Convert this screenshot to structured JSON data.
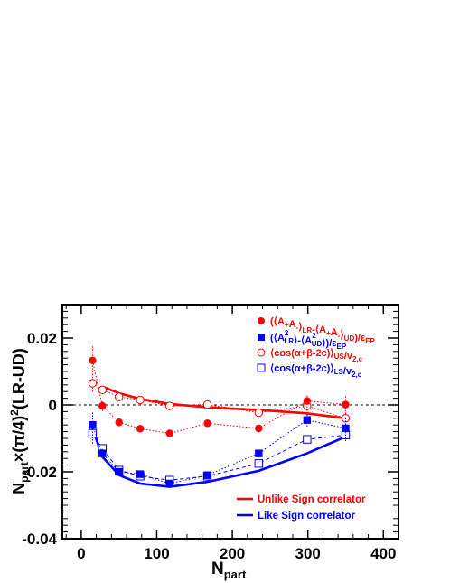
{
  "colors": {
    "red": "#ff0000",
    "blue": "#0000ff",
    "axis": "#000000"
  },
  "chart_data": {
    "type": "scatter",
    "xlabel_main": "N",
    "xlabel_sub": "part",
    "ylabel": "N_part×(π/4)^2(LR-UD)",
    "xlim": [
      -25,
      420
    ],
    "ylim": [
      -0.04,
      0.03
    ],
    "xticks": [
      0,
      100,
      200,
      300,
      400
    ],
    "xtick_labels": [
      "0",
      "100",
      "200",
      "300",
      "400"
    ],
    "yticks": [
      -0.04,
      -0.02,
      0,
      0.02
    ],
    "ytick_labels": [
      "-0.04",
      "-0.02",
      "0",
      "0.02"
    ],
    "zero_line": true,
    "legend_position": "top-right",
    "series": [
      {
        "name": "(⟨A+A-⟩LR-⟨A+A-⟩UD)/εEP",
        "color": "#ff0000",
        "marker": "filled-circle",
        "line": "dotted",
        "x": [
          15,
          28,
          50,
          78,
          117,
          167,
          235,
          299,
          350
        ],
        "y": [
          0.0133,
          -0.0003,
          -0.0052,
          -0.0071,
          -0.0085,
          -0.0055,
          -0.007,
          0.0012,
          0.0001
        ],
        "err": [
          0.0043,
          0.0015,
          0.001,
          0.0009,
          0.001,
          0.001,
          0.0012,
          0.002,
          0.0028
        ]
      },
      {
        "name": "(⟨A²LR⟩-⟨A²UD⟩)/εEP",
        "color": "#0000ff",
        "marker": "filled-square",
        "line": "dotted",
        "x": [
          15,
          28,
          50,
          78,
          117,
          167,
          235,
          299,
          350
        ],
        "y": [
          -0.006,
          -0.0145,
          -0.02,
          -0.0207,
          -0.0235,
          -0.021,
          -0.0145,
          -0.0045,
          -0.007
        ],
        "err": [
          0.004,
          0.0015,
          0.001,
          0.0009,
          0.0009,
          0.0009,
          0.0012,
          0.002,
          0.003
        ]
      },
      {
        "name": "⟨cos(α+β-2c)⟩US/v2,c",
        "color": "#ff0000",
        "marker": "open-circle",
        "line": "dotted",
        "x": [
          15,
          28,
          50,
          78,
          117,
          167,
          235,
          299,
          350
        ],
        "y": [
          0.0065,
          0.0045,
          0.0024,
          0.0015,
          -0.0003,
          0.0001,
          -0.0023,
          -0.0003,
          -0.004
        ],
        "err": [
          0.0025,
          0.0012,
          0.0008,
          0.0007,
          0.0007,
          0.0007,
          0.0009,
          0.0015,
          0.002
        ]
      },
      {
        "name": "⟨cos(α+β-2c)⟩LS/v2,c",
        "color": "#0000ff",
        "marker": "open-square",
        "line": "dashed",
        "x": [
          15,
          28,
          50,
          78,
          117,
          167,
          235,
          299,
          350
        ],
        "y": [
          -0.0085,
          -0.013,
          -0.0195,
          -0.0213,
          -0.0225,
          -0.0213,
          -0.0175,
          -0.0103,
          -0.009
        ],
        "err": [
          0.003,
          0.0012,
          0.0009,
          0.0008,
          0.0008,
          0.0008,
          0.0009,
          0.0012,
          0.0018
        ]
      },
      {
        "name": "Unlike Sign correlator",
        "color": "#ff0000",
        "marker": "none",
        "line": "solid",
        "x": [
          28,
          50,
          78,
          117,
          167,
          235,
          299,
          350
        ],
        "y": [
          0.0055,
          0.0035,
          0.0018,
          0.0003,
          -0.0007,
          -0.0015,
          -0.0025,
          -0.004
        ]
      },
      {
        "name": "Like Sign correlator",
        "color": "#0000ff",
        "marker": "none",
        "line": "solid",
        "x": [
          15,
          28,
          50,
          78,
          117,
          167,
          235,
          299,
          350
        ],
        "y": [
          -0.007,
          -0.0155,
          -0.021,
          -0.0235,
          -0.0245,
          -0.023,
          -0.0197,
          -0.0145,
          -0.0095
        ]
      }
    ],
    "legend": [
      {
        "label": "(⟨A₊A₋⟩ₗᵣ-⟨A₊A₋⟩ᵤᴅ)/εEP",
        "parts": [
          [
            "(⟨A",
            ""
          ],
          [
            "+",
            "sub"
          ],
          [
            "A",
            ""
          ],
          [
            "-",
            "sub"
          ],
          [
            "⟩",
            ""
          ],
          [
            "LR",
            "sub"
          ],
          [
            "-⟨A",
            ""
          ],
          [
            "+",
            "sub"
          ],
          [
            "A",
            ""
          ],
          [
            "-",
            "sub"
          ],
          [
            "⟩",
            ""
          ],
          [
            "UD",
            "sub"
          ],
          [
            ")/ε",
            ""
          ],
          [
            "EP",
            "sub"
          ]
        ],
        "color": "#ff0000",
        "marker": "filled-circle"
      },
      {
        "label": "(⟨A²LR⟩-⟨A²UD⟩)/εEP",
        "parts": [
          [
            "(⟨A",
            ""
          ],
          [
            "2",
            "sup"
          ],
          [
            "LR",
            "subx"
          ],
          [
            "⟩-⟨A",
            ""
          ],
          [
            "2",
            "sup"
          ],
          [
            "UD",
            "subx"
          ],
          [
            "⟩)/ε",
            ""
          ],
          [
            "EP",
            "sub"
          ]
        ],
        "color": "#0000ff",
        "marker": "filled-square"
      },
      {
        "label": "⟨cos(α+β-2c)⟩US/v2,c",
        "parts": [
          [
            "⟨cos(α+β-2c)⟩",
            ""
          ],
          [
            "US",
            "sub"
          ],
          [
            "/v",
            ""
          ],
          [
            "2,c",
            "sub"
          ]
        ],
        "color": "#ff0000",
        "marker": "open-circle"
      },
      {
        "label": "⟨cos(α+β-2c)⟩LS/v2,c",
        "parts": [
          [
            "⟨cos(α+β-2c)⟩",
            ""
          ],
          [
            "LS",
            "sub"
          ],
          [
            "/v",
            ""
          ],
          [
            "2,c",
            "sub"
          ]
        ],
        "color": "#0000ff",
        "marker": "open-square"
      }
    ],
    "correlator_legend": [
      {
        "label": "Unlike Sign correlator",
        "color": "#ff0000"
      },
      {
        "label": "Like Sign correlator",
        "color": "#0000ff"
      }
    ]
  }
}
